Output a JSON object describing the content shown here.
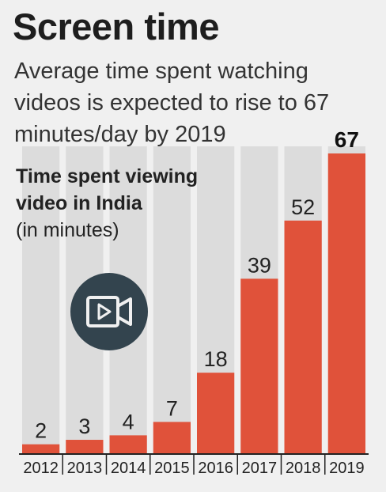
{
  "header": {
    "title": "Screen time",
    "subtitle": "Average time spent watching videos is expected to rise to 67 minutes/day by 2019"
  },
  "chart_heading": {
    "bold_text": "Time spent viewing video in India",
    "unit_text": "(in minutes)"
  },
  "icon": {
    "name": "video-camera-icon"
  },
  "colors": {
    "bar": "#e0523a",
    "background_column": "#dcdcdc",
    "icon_circle": "#33444e"
  },
  "chart_data": {
    "type": "bar",
    "title": "Time spent viewing video in India",
    "ylabel": "(in minutes)",
    "xlabel": "",
    "categories": [
      "2012",
      "2013",
      "2014",
      "2015",
      "2016",
      "2017",
      "2018",
      "2019"
    ],
    "values": [
      2,
      3,
      4,
      7,
      18,
      39,
      52,
      67
    ],
    "labels": [
      "2",
      "3",
      "4",
      "7",
      "18",
      "39",
      "52",
      "67"
    ],
    "highlight_index": 7,
    "ylim": [
      0,
      67
    ],
    "grid": false,
    "legend": "none"
  }
}
